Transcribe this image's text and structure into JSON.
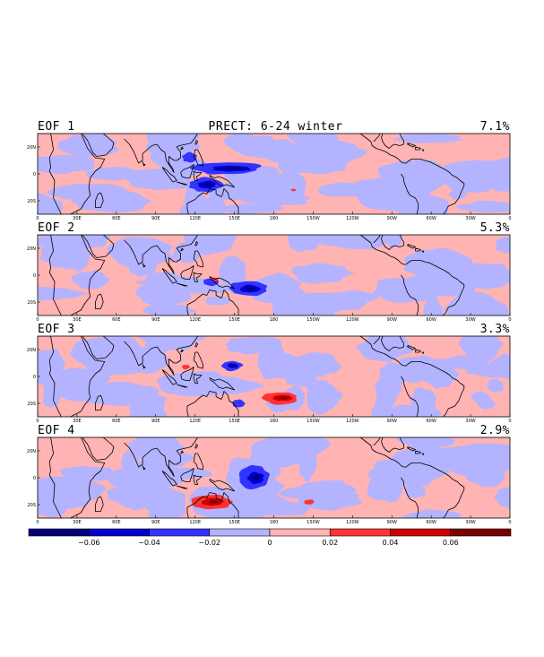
{
  "chart_data": {
    "type": "heatmap",
    "title": "PRECT: 6-24 winter",
    "panels": [
      {
        "label": "EOF 1",
        "variance": "7.1%"
      },
      {
        "label": "EOF 2",
        "variance": "5.3%"
      },
      {
        "label": "EOF 3",
        "variance": "3.3%"
      },
      {
        "label": "EOF 4",
        "variance": "2.9%"
      }
    ],
    "x_ticks": [
      "0",
      "30E",
      "60E",
      "90E",
      "120E",
      "150E",
      "180",
      "150W",
      "120W",
      "90W",
      "60W",
      "30W",
      "0"
    ],
    "y_ticks": [
      "20N",
      "0",
      "20S"
    ],
    "colorbar": {
      "levels": [
        -0.08,
        -0.06,
        -0.04,
        -0.02,
        0,
        0.02,
        0.04,
        0.06,
        0.08
      ],
      "tick_labels": [
        "−0.06",
        "−0.04",
        "−0.02",
        "0",
        "0.02",
        "0.04",
        "0.06"
      ],
      "colors": [
        "#00007a",
        "#0000cc",
        "#3333ff",
        "#b3b3ff",
        "#ffb3b3",
        "#ff3333",
        "#cc0000",
        "#7a0000"
      ]
    },
    "features": [
      {
        "panel": 0,
        "sign": -1,
        "lon": 145,
        "lat": 4,
        "rlon": 28,
        "rlat": 5
      },
      {
        "panel": 0,
        "sign": -1,
        "lon": 128,
        "lat": -8,
        "rlon": 13,
        "rlat": 6
      },
      {
        "panel": 0,
        "sign": -1,
        "lon": 116,
        "lat": 12,
        "rlon": 6,
        "rlat": 4
      },
      {
        "panel": 0,
        "sign": 1,
        "lon": 195,
        "lat": -12,
        "rlon": 2,
        "rlat": 1
      },
      {
        "panel": 1,
        "sign": -1,
        "lon": 160,
        "lat": -10,
        "rlon": 15,
        "rlat": 6
      },
      {
        "panel": 1,
        "sign": -1,
        "lon": 132,
        "lat": -5,
        "rlon": 6,
        "rlat": 3
      },
      {
        "panel": 1,
        "sign": 1,
        "lon": 135,
        "lat": -3,
        "rlon": 3,
        "rlat": 1.5
      },
      {
        "panel": 2,
        "sign": -1,
        "lon": 148,
        "lat": 8,
        "rlon": 8,
        "rlat": 4
      },
      {
        "panel": 2,
        "sign": -1,
        "lon": 153,
        "lat": -20,
        "rlon": 5,
        "rlat": 3
      },
      {
        "panel": 2,
        "sign": 1,
        "lon": 185,
        "lat": -16,
        "rlon": 14,
        "rlat": 5
      },
      {
        "panel": 2,
        "sign": 1,
        "lon": 113,
        "lat": 7,
        "rlon": 3,
        "rlat": 2
      },
      {
        "panel": 3,
        "sign": -1,
        "lon": 165,
        "lat": 0,
        "rlon": 12,
        "rlat": 9
      },
      {
        "panel": 3,
        "sign": 1,
        "lon": 132,
        "lat": -18,
        "rlon": 16,
        "rlat": 6
      },
      {
        "panel": 3,
        "sign": 1,
        "lon": 207,
        "lat": -18,
        "rlon": 4,
        "rlat": 2
      }
    ]
  }
}
